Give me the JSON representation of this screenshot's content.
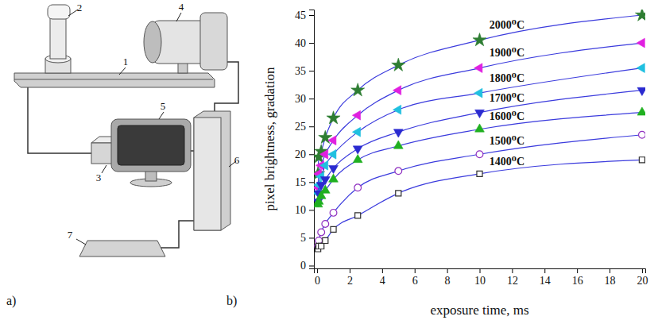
{
  "diagram": {
    "label": "a)",
    "parts": [
      {
        "label": "1"
      },
      {
        "label": "2"
      },
      {
        "label": "3"
      },
      {
        "label": "4"
      },
      {
        "label": "5"
      },
      {
        "label": "6"
      },
      {
        "label": "7"
      }
    ]
  },
  "chart_data": {
    "type": "line",
    "panel_label": "b)",
    "x_label": "exposure time, ms",
    "y_label": "pixel brightness, gradation",
    "x": [
      0.05,
      0.1,
      0.25,
      0.5,
      1,
      2.5,
      5,
      10,
      20
    ],
    "xlim": [
      -0.2,
      20.2
    ],
    "xticks": [
      0,
      2,
      4,
      6,
      8,
      10,
      12,
      14,
      16,
      18,
      20
    ],
    "ylim": [
      -0.5,
      46
    ],
    "yticks": [
      0,
      5,
      10,
      15,
      20,
      25,
      30,
      35,
      40,
      45
    ],
    "grid": false,
    "series": [
      {
        "name": "2000⁰C",
        "color": "#2e7d32",
        "marker": "star",
        "line_style": "solid",
        "values": [
          16.5,
          19.5,
          20.5,
          23,
          26.5,
          31.5,
          36,
          40.5,
          45
        ]
      },
      {
        "name": "1900⁰C",
        "color": "#e020e0",
        "marker": "triangle-left",
        "line_style": "solid",
        "values": [
          14,
          16.5,
          18,
          20,
          22.5,
          27,
          31.5,
          35.5,
          40
        ]
      },
      {
        "name": "1800⁰C",
        "color": "#20c0e0",
        "marker": "triangle-left",
        "line_style": "solid",
        "values": [
          13,
          14.5,
          16,
          18,
          20,
          24,
          28,
          31,
          35.5
        ]
      },
      {
        "name": "1700⁰C",
        "color": "#2a2ad0",
        "marker": "triangle-down",
        "line_style": "solid",
        "values": [
          11.5,
          13,
          14.5,
          15.5,
          17.5,
          21,
          24,
          27.5,
          31.5
        ]
      },
      {
        "name": "1600⁰C",
        "color": "#20b020",
        "marker": "triangle-up",
        "line_style": "solid",
        "values": [
          11,
          11.5,
          12.5,
          13.5,
          15.5,
          19,
          21.5,
          24.5,
          27.5
        ]
      },
      {
        "name": "1500⁰C",
        "color": "#9030c0",
        "marker": "circle-open",
        "line_style": "solid",
        "values": [
          3.5,
          4.5,
          6,
          7.5,
          9.5,
          14,
          17,
          20,
          23.5
        ]
      },
      {
        "name": "1400⁰C",
        "color": "#303030",
        "marker": "square-open",
        "line_style": "solid",
        "values": [
          3,
          3.5,
          3.5,
          4.5,
          6.5,
          9,
          13,
          16.5,
          19
        ]
      }
    ]
  }
}
